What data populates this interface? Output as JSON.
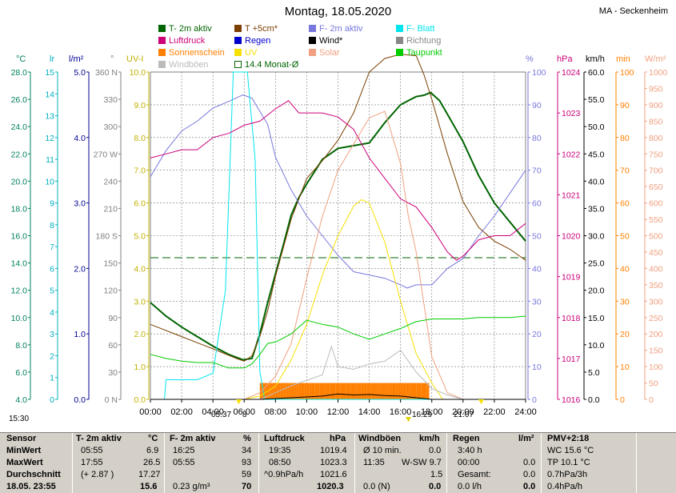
{
  "title": "Montag, 18.05.2020",
  "station": "MA - Seckenheim",
  "legend": [
    {
      "label": "T- 2m aktiv",
      "color": "#006400"
    },
    {
      "label": "T +5cm*",
      "color": "#7b3f00"
    },
    {
      "label": "F- 2m aktiv",
      "color": "#7777dd"
    },
    {
      "label": "F- Blatt",
      "color": "#00e5ee"
    },
    {
      "label": "Luftdruck",
      "color": "#cc007a"
    },
    {
      "label": "Regen",
      "color": "#0000cc"
    },
    {
      "label": "Wind*",
      "color": "#000000"
    },
    {
      "label": "Richtung",
      "color": "#888888"
    },
    {
      "label": "Sonnenschein",
      "color": "#ff7f00"
    },
    {
      "label": "UV",
      "color": "#f5e000"
    },
    {
      "label": "Solar",
      "color": "#f0a080"
    },
    {
      "label": "Taupunkt",
      "color": "#00cc00"
    },
    {
      "label": "Windböen",
      "color": "#bbbbbb"
    },
    {
      "label": "14.4 Monat-Ø",
      "color": "#006400",
      "outline": true
    }
  ],
  "axis_headers": {
    "temp": "°C",
    "lr": "lr",
    "rain": "l/m²",
    "dir": "°",
    "uv": "UV-I",
    "hum": "%",
    "press": "hPa",
    "wind": "km/h",
    "sun": "min",
    "solar": "W/m²"
  },
  "below": {
    "start_time": "15:30",
    "sunrise": "05:37",
    "sunrise_val": "8",
    "noon_val": "16:29",
    "sunset": "21:07"
  },
  "table": {
    "row_labels": [
      "Sensor",
      "MinWert",
      "MaxWert",
      "Durchschnitt",
      "18.05. 23:55"
    ],
    "temp": {
      "head": "T- 2m aktiv",
      "unit": "°C",
      "rows": [
        [
          "05:55",
          "6.9"
        ],
        [
          "17:55",
          "26.5"
        ],
        [
          "(+ 2.87 )",
          "17.27"
        ],
        [
          "",
          "15.6"
        ]
      ]
    },
    "hum": {
      "head": "F- 2m aktiv",
      "unit": "%",
      "rows": [
        [
          "16:25",
          "34"
        ],
        [
          "05:55",
          "93"
        ],
        [
          "",
          "59"
        ],
        [
          "0.23 g/m³",
          "70"
        ]
      ]
    },
    "press": {
      "head": "Luftdruck",
      "unit": "hPa",
      "rows": [
        [
          "19:35",
          "1019.4"
        ],
        [
          "08:50",
          "1023.3"
        ],
        [
          "^0.9hPa/h",
          "1021.6"
        ],
        [
          "",
          "1020.3"
        ]
      ]
    },
    "wind": {
      "head": "Windböen",
      "unit": "km/h",
      "rows": [
        [
          "Ø 10 min.",
          "0.0"
        ],
        [
          "11:35",
          "W-SW 9.7"
        ],
        [
          "",
          "1.5"
        ],
        [
          "0.0 (N)",
          "0.0"
        ]
      ]
    },
    "rain": {
      "head": "Regen",
      "unit": "l/m²",
      "rows": [
        [
          "3:40 h",
          ""
        ],
        [
          "00:00",
          "0.0"
        ],
        [
          "Gesamt:",
          "0.0"
        ],
        [
          "0.0 l/h",
          "0.0"
        ]
      ]
    },
    "pmv": {
      "head": "PMV+2:18",
      "rows": [
        "WC 15.6 °C",
        "TP 10.1 °C",
        "0.7hPa/3h",
        "0.4hPa/h"
      ]
    }
  },
  "chart_data": {
    "type": "line",
    "x_ticks": [
      "00:00",
      "02:00",
      "04:00",
      "06:00",
      "08:00",
      "10:00",
      "12:00",
      "14:00",
      "16:00",
      "18:00",
      "20:00",
      "22:00",
      "24:00"
    ],
    "axes": {
      "temp": {
        "label": "°C",
        "range": [
          4.0,
          28.0
        ],
        "ticks": [
          "4.0",
          "6.0",
          "8.0",
          "10.0",
          "12.0",
          "14.0",
          "16.0",
          "18.0",
          "20.0",
          "22.0",
          "24.0",
          "26.0",
          "28.0"
        ]
      },
      "lr": {
        "label": "lr",
        "range": [
          0,
          15
        ],
        "ticks": [
          "0",
          "1",
          "2",
          "3",
          "4",
          "5",
          "6",
          "7",
          "8",
          "9",
          "10",
          "11",
          "12",
          "13",
          "14",
          "15"
        ]
      },
      "rain": {
        "label": "l/m²",
        "range": [
          0.0,
          5.0
        ],
        "ticks": [
          "0.0",
          "1.0",
          "2.0",
          "3.0",
          "4.0",
          "5.0"
        ]
      },
      "dir": {
        "label": "°",
        "range": [
          0,
          360
        ],
        "ticks": [
          "0 N",
          "30",
          "60",
          "90",
          "120",
          "150",
          "180 S",
          "210",
          "240",
          "270 W",
          "300",
          "330",
          "360 N"
        ]
      },
      "uv": {
        "label": "UV-I",
        "range": [
          0.0,
          10.0
        ],
        "ticks": [
          "0.0",
          "1.0",
          "2.0",
          "3.0",
          "4.0",
          "5.0",
          "6.0",
          "7.0",
          "8.0",
          "9.0",
          "10.0"
        ]
      },
      "hum": {
        "label": "%",
        "range": [
          0,
          100
        ],
        "ticks": [
          "0",
          "10",
          "20",
          "30",
          "40",
          "50",
          "60",
          "70",
          "80",
          "90",
          "100"
        ]
      },
      "press": {
        "label": "hPa",
        "range": [
          1016,
          1024
        ],
        "ticks": [
          "1016",
          "1017",
          "1018",
          "1019",
          "1020",
          "1021",
          "1022",
          "1023",
          "1024"
        ]
      },
      "wind": {
        "label": "km/h",
        "range": [
          0.0,
          60.0
        ],
        "ticks": [
          "0.0",
          "5.0",
          "10.0",
          "15.0",
          "20.0",
          "25.0",
          "30.0",
          "35.0",
          "40.0",
          "45.0",
          "50.0",
          "55.0",
          "60.0"
        ]
      },
      "sun": {
        "label": "min",
        "range": [
          0,
          100
        ],
        "ticks": [
          "0",
          "10",
          "20",
          "30",
          "40",
          "50",
          "60",
          "70",
          "80",
          "90",
          "100"
        ]
      },
      "solar": {
        "label": "W/m²",
        "range": [
          0,
          1000
        ],
        "ticks": [
          "0",
          "50",
          "100",
          "150",
          "200",
          "250",
          "300",
          "350",
          "400",
          "450",
          "500",
          "550",
          "600",
          "650",
          "700",
          "750",
          "800",
          "850",
          "900",
          "950",
          "1000"
        ]
      }
    },
    "monthly_avg_temp": 14.4,
    "series": [
      {
        "name": "T- 2m aktiv",
        "axis": "temp",
        "color": "#006400",
        "x": [
          0,
          1,
          2,
          3,
          4,
          5,
          5.92,
          6.5,
          7,
          7.5,
          8,
          8.5,
          9,
          9.5,
          10,
          11,
          12,
          13,
          14,
          15,
          16,
          16.5,
          17,
          17.5,
          17.92,
          18.5,
          19,
          20,
          21,
          22,
          23,
          24
        ],
        "y": [
          11.1,
          10.1,
          9.3,
          8.6,
          7.9,
          7.3,
          6.9,
          7.0,
          8.8,
          11.1,
          13.2,
          15.3,
          17.5,
          18.8,
          19.8,
          21.6,
          22.4,
          22.6,
          22.8,
          24.3,
          25.6,
          25.9,
          26.2,
          26.3,
          26.5,
          25.9,
          24.9,
          22.9,
          20.4,
          18.4,
          17.0,
          15.6
        ]
      },
      {
        "name": "T +5cm*",
        "axis": "temp",
        "color": "#7b3f00",
        "x": [
          0,
          2,
          4,
          5.5,
          6,
          6.5,
          7,
          7.5,
          8,
          9,
          10,
          11,
          12,
          13,
          13.5,
          14,
          15,
          16,
          17,
          17.5,
          18,
          19,
          20,
          21,
          22,
          23,
          24
        ],
        "y": [
          9.5,
          8.6,
          7.7,
          7.0,
          6.8,
          7.2,
          8.6,
          10.5,
          13.0,
          17.2,
          20.2,
          21.5,
          23.0,
          25.0,
          26.5,
          28.0,
          29.0,
          29.3,
          29.2,
          27.8,
          26.0,
          22.0,
          18.5,
          16.6,
          15.6,
          15.0,
          14.2
        ]
      },
      {
        "name": "F- 2m aktiv",
        "axis": "hum",
        "color": "#7777dd",
        "x": [
          0,
          1,
          2,
          3,
          4,
          5,
          5.92,
          6.5,
          7,
          7.5,
          8,
          9,
          10,
          11,
          12,
          13,
          14,
          15,
          16,
          16.42,
          17,
          18,
          19,
          20,
          21,
          22,
          23,
          24
        ],
        "y": [
          68,
          76,
          82,
          85,
          89,
          91,
          93,
          92,
          88,
          84,
          74,
          64,
          56,
          50,
          44,
          39,
          38,
          37,
          35,
          34,
          35,
          35,
          40,
          43,
          50,
          56,
          63,
          70
        ]
      },
      {
        "name": "F- Blatt",
        "axis": "lr",
        "color": "#00e5ee",
        "x": [
          0,
          0.9,
          1.0,
          2,
          3,
          4,
          4.8,
          5.3,
          6.2,
          6.7,
          7.0,
          7.3,
          24
        ],
        "y": [
          0,
          0,
          0.9,
          0.9,
          0.9,
          1.2,
          5,
          15,
          15,
          11,
          1.3,
          0,
          0
        ]
      },
      {
        "name": "Luftdruck",
        "axis": "press",
        "color": "#cc007a",
        "x": [
          0,
          1,
          2,
          3,
          4,
          5,
          6,
          7,
          8,
          8.83,
          9.5,
          10,
          11,
          12,
          13,
          14,
          15,
          16,
          17,
          18,
          19,
          19.58,
          20,
          21,
          22,
          23,
          24
        ],
        "y": [
          1021.9,
          1022.0,
          1022.1,
          1022.1,
          1022.4,
          1022.5,
          1022.7,
          1022.8,
          1023.1,
          1023.3,
          1023.0,
          1023.0,
          1023.0,
          1022.9,
          1022.6,
          1021.9,
          1021.4,
          1020.9,
          1020.7,
          1020.2,
          1019.6,
          1019.4,
          1019.5,
          1019.9,
          1020.0,
          1020.0,
          1020.3
        ]
      },
      {
        "name": "UV",
        "axis": "uv",
        "color": "#f5e000",
        "x": [
          0,
          6,
          7,
          8,
          9,
          10,
          11,
          12,
          13,
          13.5,
          14,
          15,
          16,
          17,
          18,
          18.7,
          24
        ],
        "y": [
          0,
          0,
          0.1,
          0.4,
          1.2,
          2.3,
          3.8,
          5.0,
          5.9,
          6.1,
          6.0,
          4.8,
          3.0,
          1.4,
          0.5,
          0,
          0
        ]
      },
      {
        "name": "Solar",
        "axis": "solar",
        "color": "#f0a080",
        "x": [
          0,
          6,
          7,
          8,
          9,
          10,
          11,
          12,
          13,
          14,
          15,
          16,
          16.5,
          17,
          18,
          19,
          20,
          24
        ],
        "y": [
          0,
          0,
          20,
          70,
          170,
          370,
          560,
          700,
          780,
          860,
          880,
          720,
          560,
          450,
          130,
          20,
          0,
          0
        ]
      },
      {
        "name": "Taupunkt",
        "axis": "temp",
        "color": "#00cc00",
        "x": [
          0,
          1,
          2,
          3,
          4,
          5,
          6,
          6.5,
          7,
          7.5,
          8,
          9,
          10,
          11,
          12,
          13,
          14,
          15,
          16,
          17,
          18,
          19,
          20,
          21,
          22,
          23,
          24
        ],
        "y": [
          7.3,
          7.0,
          6.8,
          6.7,
          6.7,
          6.3,
          6.3,
          6.6,
          7.3,
          8.1,
          8.2,
          8.8,
          9.8,
          9.5,
          9.3,
          8.8,
          8.4,
          8.8,
          9.2,
          9.7,
          9.9,
          9.9,
          9.9,
          10.0,
          10.0,
          10.0,
          10.1
        ]
      },
      {
        "name": "Windböen",
        "axis": "wind",
        "color": "#bbbbbb",
        "x": [
          0,
          7,
          8,
          9,
          10,
          11,
          11.58,
          12,
          13,
          14,
          15,
          16,
          17,
          18,
          19,
          20,
          24
        ],
        "y": [
          0,
          0,
          1.2,
          2.5,
          3.5,
          4.5,
          9.7,
          6.0,
          5.5,
          6.5,
          7.0,
          9.0,
          5.0,
          2.0,
          0.8,
          0,
          0
        ]
      },
      {
        "name": "Wind*",
        "axis": "wind",
        "color": "#000000",
        "x": [
          0,
          7,
          9,
          11,
          12,
          13,
          14,
          15,
          16,
          17,
          18,
          24
        ],
        "y": [
          0,
          0,
          0.3,
          0.6,
          1.0,
          0.8,
          0.9,
          0.7,
          0.6,
          0.3,
          0,
          0
        ]
      }
    ],
    "sunshine": {
      "name": "Sonnenschein",
      "axis": "sun",
      "color": "#ff7f00",
      "start": 7.0,
      "end": 17.8,
      "level": 5
    }
  }
}
